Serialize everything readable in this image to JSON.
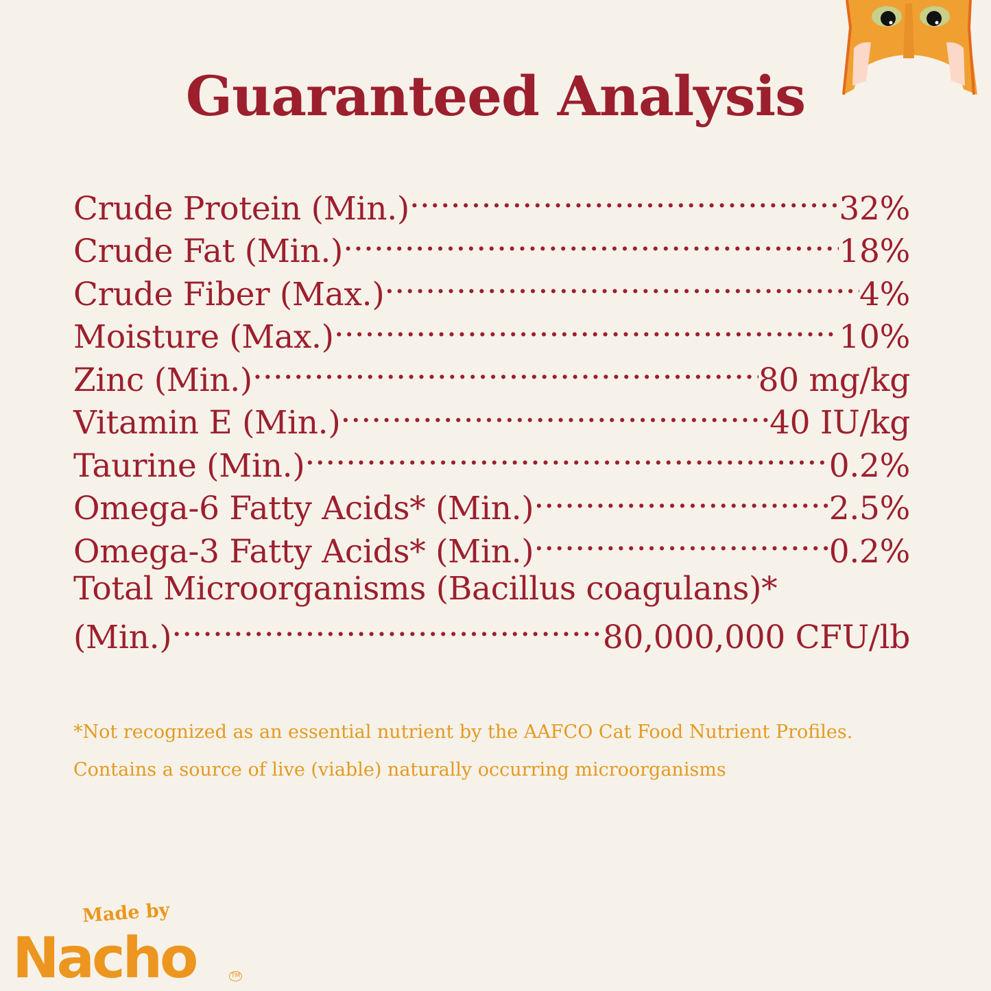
{
  "title": "Guaranteed Analysis",
  "nutrients": [
    {
      "label": "Crude Protein (Min.)",
      "value": "32%"
    },
    {
      "label": "Crude Fat (Min.)",
      "value": "18%"
    },
    {
      "label": "Crude Fiber (Max.)",
      "value": "4%"
    },
    {
      "label": "Moisture (Max.)",
      "value": "10%"
    },
    {
      "label": "Zinc (Min.)",
      "value": "80 mg/kg"
    },
    {
      "label": "Vitamin E (Min.)",
      "value": "40 IU/kg"
    },
    {
      "label": "Taurine (Min.)",
      "value": "0.2%"
    },
    {
      "label": "Omega-6 Fatty Acids* (Min.)",
      "value": "2.5%"
    },
    {
      "label": "Omega-3 Fatty Acids* (Min.)",
      "value": "0.2%"
    }
  ],
  "last_nutrient": {
    "label_line1": "Total Microorganisms (Bacillus coagulans)*",
    "label_line2": "(Min.)",
    "value": "80,000,000 CFU/lb"
  },
  "footnotes": [
    "*Not recognized as an essential nutrient by the AAFCO Cat Food Nutrient Profiles.",
    "Contains a source of live (viable) naturally occurring microorganisms"
  ],
  "logo": {
    "made_by": "Made by",
    "brand": "Nacho",
    "tm": "TM"
  },
  "colors": {
    "title": "#9c1f2e",
    "footnote": "#e39a22",
    "logo": "#ec961f",
    "background": "#f6f2e9"
  },
  "icons": {
    "cat": "orange-cat-face-illustration"
  }
}
